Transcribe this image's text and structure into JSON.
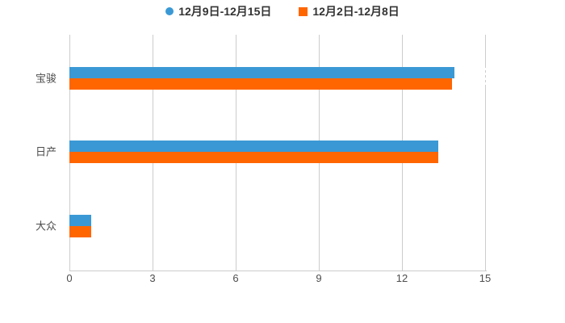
{
  "chart_data": {
    "type": "bar",
    "orientation": "horizontal",
    "title": "",
    "categories": [
      "宝骏",
      "日产",
      "大众"
    ],
    "series": [
      {
        "name": "12月9日-12月15日",
        "color": "#3A99D5",
        "legend_icon": "circle",
        "values": [
          13.9,
          13.3,
          0.8
        ]
      },
      {
        "name": "12月2日-12月8日",
        "color": "#FF6600",
        "legend_icon": "square",
        "values": [
          13.8,
          13.3,
          0.8
        ]
      }
    ],
    "x_ticks": [
      0,
      3,
      6,
      9,
      12,
      15
    ],
    "xlim": [
      0,
      15
    ],
    "grid": true,
    "legend_position": "top",
    "colors": {
      "background": "#FFFFFF",
      "gridline": "#CCCCCC",
      "axis_line": "#CCCCCC",
      "tick_label": "#4D4D4D",
      "category_label": "#4D4D4D",
      "legend_text": "#333333"
    }
  }
}
